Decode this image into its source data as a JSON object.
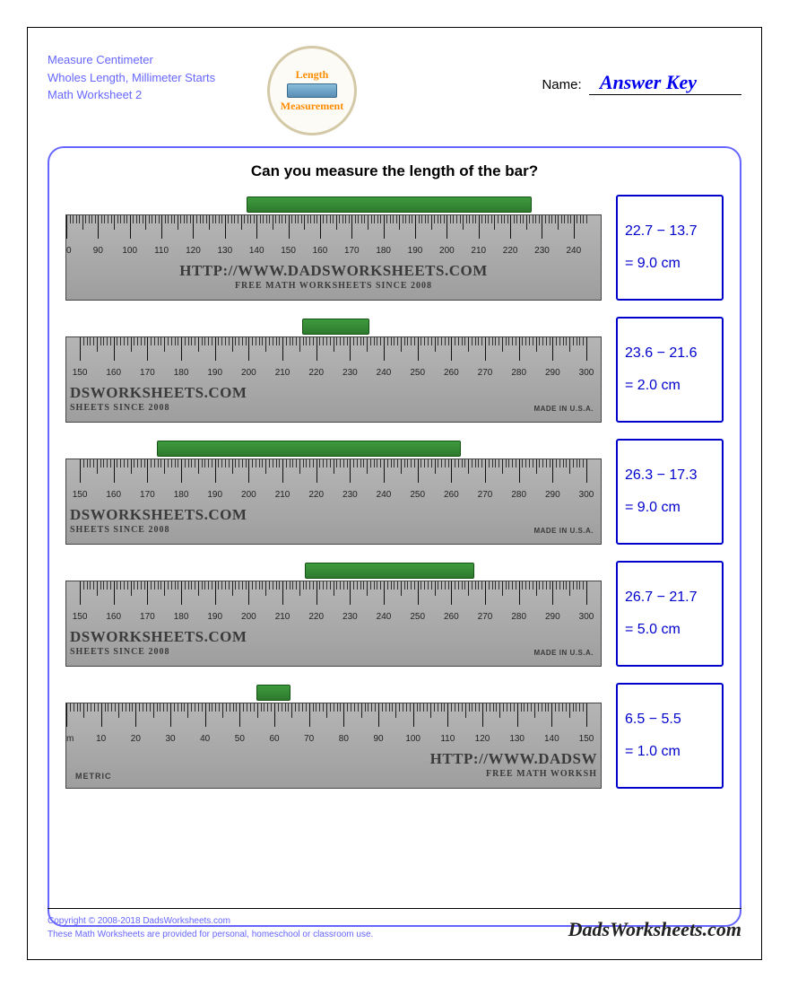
{
  "header": {
    "line1": "Measure Centimeter",
    "line2": "Wholes Length, Millimeter Starts",
    "line3": "Math Worksheet 2",
    "badge_top": "Length",
    "badge_bottom": "Measurement",
    "name_label": "Name:",
    "answer_key": "Answer Key"
  },
  "question": "Can you measure the length of the bar?",
  "colors": {
    "accent": "#6666ff",
    "answer_blue": "#0000cc",
    "bar_fill": "#2e7a2e",
    "ruler_bg": "#a8a8a8"
  },
  "problems": [
    {
      "ruler_start_mm": 80,
      "ruler_end_mm": 244,
      "bar_start_mm": 137,
      "bar_end_mm": 227,
      "brand_align": "center",
      "brand_text": "HTTP://WWW.DADSWORKSHEETS.COM",
      "brand_sub": "FREE MATH WORKSHEETS SINCE 2008",
      "made_in": "",
      "calc": "22.7 − 13.7",
      "result": "= 9.0 cm"
    },
    {
      "ruler_start_mm": 146,
      "ruler_end_mm": 300,
      "bar_start_mm": 216,
      "bar_end_mm": 236,
      "brand_align": "left",
      "brand_text": "DSWORKSHEETS.COM",
      "brand_sub": "SHEETS SINCE 2008",
      "made_in": "MADE IN U.S.A.",
      "calc": "23.6 − 21.6",
      "result": "= 2.0 cm"
    },
    {
      "ruler_start_mm": 146,
      "ruler_end_mm": 300,
      "bar_start_mm": 173,
      "bar_end_mm": 263,
      "brand_align": "left",
      "brand_text": "DSWORKSHEETS.COM",
      "brand_sub": "SHEETS SINCE 2008",
      "made_in": "MADE IN U.S.A.",
      "calc": "26.3 − 17.3",
      "result": "= 9.0 cm"
    },
    {
      "ruler_start_mm": 146,
      "ruler_end_mm": 300,
      "bar_start_mm": 217,
      "bar_end_mm": 267,
      "brand_align": "left",
      "brand_text": "DSWORKSHEETS.COM",
      "brand_sub": "SHEETS SINCE 2008",
      "made_in": "MADE IN U.S.A.",
      "calc": "26.7 − 21.7",
      "result": "= 5.0 cm"
    },
    {
      "ruler_start_mm": 0,
      "ruler_end_mm": 150,
      "bar_start_mm": 55,
      "bar_end_mm": 65,
      "brand_align": "right",
      "brand_text": "HTTP://WWW.DADSW",
      "brand_sub": "FREE MATH WORKSH",
      "mm_label": "mm",
      "metric_label": "METRIC",
      "made_in": "",
      "calc": "6.5 − 5.5",
      "result": "= 1.0 cm"
    }
  ],
  "footer": {
    "copyright": "Copyright © 2008-2018 DadsWorksheets.com",
    "disclaimer": "These Math Worksheets are provided for personal, homeschool or classroom use.",
    "brand": "DadsWorksheets.com"
  }
}
